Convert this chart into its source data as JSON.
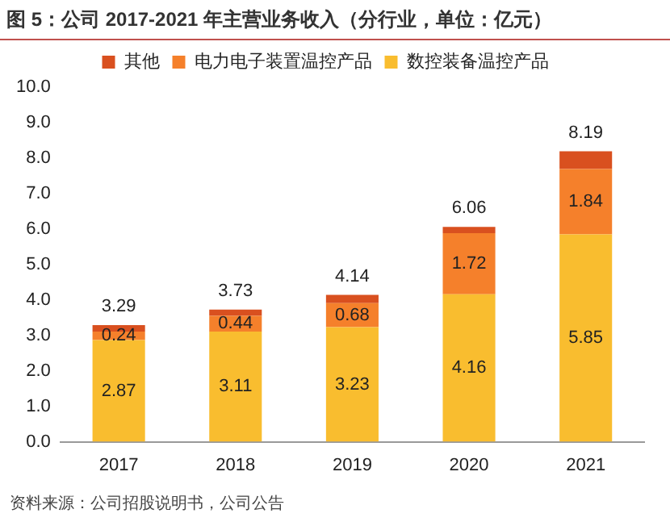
{
  "chart_data": {
    "type": "bar",
    "title": "图 5：公司 2017-2021 年主营业务收入（分行业，单位：亿元）",
    "categories": [
      "2017",
      "2018",
      "2019",
      "2020",
      "2021"
    ],
    "stacked": true,
    "series": [
      {
        "name": "数控装备温控产品",
        "color": "#f9bd2f",
        "values": [
          2.87,
          3.11,
          3.23,
          4.16,
          5.85
        ],
        "value_labels": [
          "2.87",
          "3.11",
          "3.23",
          "4.16",
          "5.85"
        ]
      },
      {
        "name": "电力电子装置温控产品",
        "color": "#f5802b",
        "values": [
          0.24,
          0.44,
          0.68,
          1.72,
          1.84
        ],
        "value_labels": [
          "0.24",
          "0.44",
          "0.68",
          "1.72",
          "1.84"
        ]
      },
      {
        "name": "其他",
        "color": "#d9501f",
        "values": [
          0.18,
          0.18,
          0.23,
          0.18,
          0.5
        ]
      }
    ],
    "totals": [
      "3.29",
      "3.73",
      "4.14",
      "6.06",
      "8.19"
    ],
    "ylim": [
      0,
      10
    ],
    "yticks": [
      {
        "value": 0,
        "label": "0.0"
      },
      {
        "value": 1,
        "label": "1.0"
      },
      {
        "value": 2,
        "label": "2.0"
      },
      {
        "value": 3,
        "label": "3.0"
      },
      {
        "value": 4,
        "label": "4.0"
      },
      {
        "value": 5,
        "label": "5.0"
      },
      {
        "value": 6,
        "label": "6.0"
      },
      {
        "value": 7,
        "label": "7.0"
      },
      {
        "value": 8,
        "label": "8.0"
      },
      {
        "value": 9,
        "label": "9.0"
      },
      {
        "value": 10,
        "label": "10.0"
      }
    ],
    "grid": false,
    "legend": "top",
    "annotations": [
      "资料来源：公司招股说明书，公司公告"
    ]
  }
}
